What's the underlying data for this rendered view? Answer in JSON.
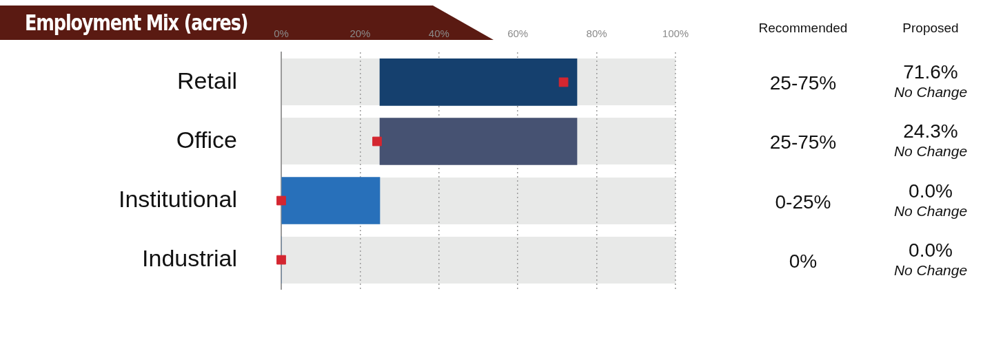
{
  "chart_data": {
    "type": "bar",
    "orientation": "horizontal",
    "title": "Employment Mix (acres)",
    "categories": [
      "Retail",
      "Office",
      "Institutional",
      "Industrial"
    ],
    "series": [
      {
        "type": "bar",
        "colors": [
          "#15406e",
          "#465272",
          "#2870ba",
          "#2870ba"
        ],
        "base": [
          25,
          25,
          0,
          0
        ],
        "values": [
          50,
          50,
          25,
          0
        ]
      },
      {
        "type": "scatter",
        "color": "#d42630",
        "marker": "square",
        "values": [
          71.6,
          24.3,
          0,
          0
        ]
      }
    ],
    "xlim": [
      0,
      100
    ],
    "xticks": [
      {
        "value": 0,
        "label": "0%"
      },
      {
        "value": 20,
        "label": "20%"
      },
      {
        "value": 40,
        "label": "40%"
      },
      {
        "value": 60,
        "label": "60%"
      },
      {
        "value": 80,
        "label": "80%"
      },
      {
        "value": 100,
        "label": "100%"
      }
    ],
    "grid": "x",
    "legend": false,
    "annotations": [
      "Recommended",
      "Proposed",
      "25-75%",
      "71.6%",
      "No Change",
      "25-75%",
      "24.3%",
      "No Change",
      "0-25%",
      "0.0%",
      "No Change",
      "0%",
      "0.0%",
      "No Change"
    ]
  }
}
